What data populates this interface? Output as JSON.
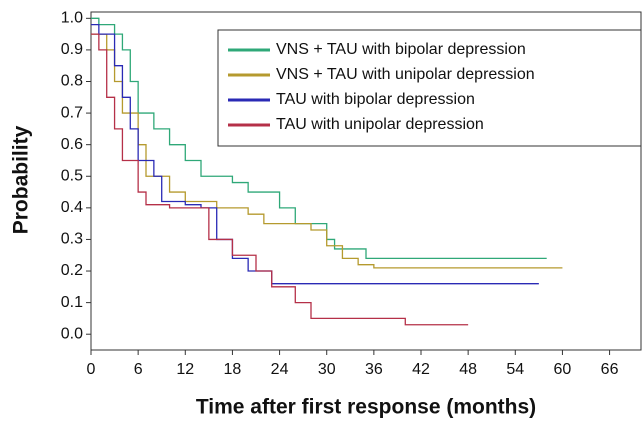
{
  "chart_data": {
    "type": "step",
    "xlabel": "Time after first response (months)",
    "ylabel": "Probability",
    "xlim": [
      0,
      70
    ],
    "ylim": [
      -0.05,
      1.02
    ],
    "xticks": [
      0,
      6,
      12,
      18,
      24,
      30,
      36,
      42,
      48,
      54,
      60,
      66
    ],
    "yticks": [
      {
        "value": 0,
        "label": "0.0"
      },
      0.1,
      0.2,
      0.3,
      0.4,
      0.5,
      0.6,
      0.7,
      0.8,
      0.9,
      {
        "value": 1,
        "label": "1.0"
      }
    ],
    "legend": "upper right",
    "series": [
      {
        "name": "VNS + TAU with bipolar depression",
        "color": "#2fa878",
        "x": [
          0,
          1,
          3,
          4,
          5,
          6,
          8,
          10,
          12,
          14,
          18,
          20,
          24,
          26,
          30,
          31,
          35,
          58
        ],
        "values": [
          1.0,
          0.98,
          0.95,
          0.9,
          0.8,
          0.7,
          0.65,
          0.6,
          0.55,
          0.5,
          0.48,
          0.45,
          0.4,
          0.35,
          0.3,
          0.27,
          0.24,
          0.24
        ]
      },
      {
        "name": "VNS + TAU with unipolar depression",
        "color": "#b59a2e",
        "x": [
          0,
          2,
          3,
          4,
          6,
          7,
          10,
          12,
          16,
          20,
          22,
          28,
          30,
          32,
          34,
          36,
          60
        ],
        "values": [
          0.95,
          0.9,
          0.8,
          0.7,
          0.6,
          0.5,
          0.45,
          0.42,
          0.4,
          0.38,
          0.35,
          0.33,
          0.28,
          0.24,
          0.22,
          0.21,
          0.21
        ]
      },
      {
        "name": "TAU with bipolar depression",
        "color": "#2a2ab5",
        "x": [
          0,
          1,
          3,
          4,
          5,
          6,
          8,
          9,
          12,
          14,
          16,
          18,
          20,
          23,
          57
        ],
        "values": [
          0.98,
          0.95,
          0.85,
          0.75,
          0.65,
          0.55,
          0.5,
          0.42,
          0.41,
          0.4,
          0.3,
          0.24,
          0.2,
          0.16,
          0.16
        ]
      },
      {
        "name": "TAU with unipolar depression",
        "color": "#b53048",
        "x": [
          0,
          1,
          2,
          3,
          4,
          6,
          7,
          10,
          15,
          18,
          21,
          23,
          26,
          28,
          40,
          48
        ],
        "values": [
          0.95,
          0.9,
          0.75,
          0.65,
          0.55,
          0.45,
          0.41,
          0.4,
          0.3,
          0.25,
          0.2,
          0.15,
          0.1,
          0.05,
          0.03,
          0.03
        ]
      }
    ]
  }
}
